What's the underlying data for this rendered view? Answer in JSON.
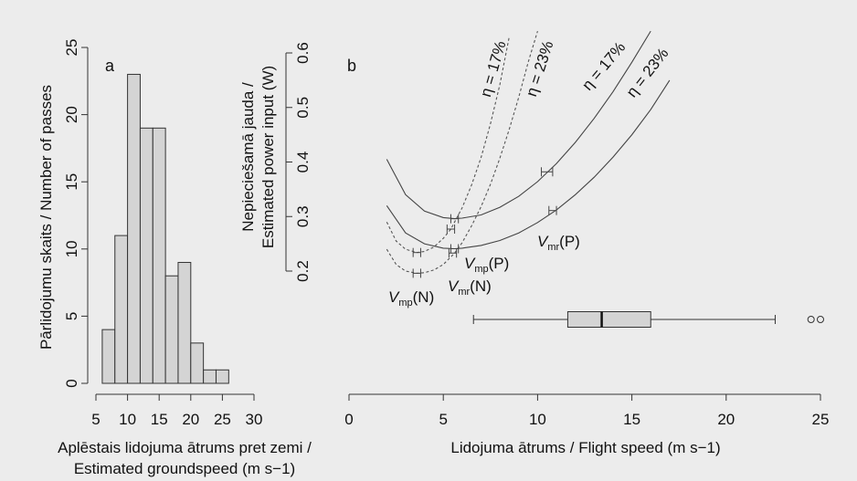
{
  "chart_data": [
    {
      "type": "bar",
      "panel": "a",
      "xlabel_line1": "Aplēstais lidojuma ātrums pret zemi /",
      "xlabel_line2": "Estimated groundspeed (m s−1)",
      "ylabel": "Pārlidojumu skaits / Number of passes",
      "xlim": [
        5,
        30
      ],
      "ylim": [
        0,
        25
      ],
      "x_ticks": [
        "5",
        "10",
        "15",
        "20",
        "25",
        "30"
      ],
      "y_ticks": [
        "0",
        "5",
        "10",
        "15",
        "20",
        "25"
      ],
      "bin_edges": [
        6,
        8,
        10,
        12,
        14,
        16,
        18,
        20,
        22,
        24,
        26
      ],
      "values": [
        4,
        11,
        23,
        19,
        19,
        8,
        9,
        3,
        1,
        1
      ]
    },
    {
      "type": "line",
      "panel": "b",
      "xlabel": "Lidojuma ātrums / Flight speed (m s−1)",
      "ylabel_line1": "Nepieciešamā jauda /",
      "ylabel_line2": "Estimated power input (W)",
      "xlim": [
        0,
        25
      ],
      "ylim": [
        0.2,
        0.6
      ],
      "x_ticks": [
        "0",
        "5",
        "10",
        "15",
        "20",
        "25"
      ],
      "y_ticks": [
        "0.2",
        "0.3",
        "0.4",
        "0.5",
        "0.6"
      ],
      "series": [
        {
          "name": "η = 17%",
          "group": "P",
          "x": [
            2.0,
            3.0,
            4.0,
            5.0,
            5.6,
            6.0,
            7.0,
            8.0,
            9.0,
            10.0,
            11.0,
            12.0,
            13.0,
            14.0,
            15.0,
            16.0
          ],
          "y": [
            0.405,
            0.34,
            0.31,
            0.298,
            0.296,
            0.297,
            0.303,
            0.317,
            0.337,
            0.364,
            0.397,
            0.436,
            0.48,
            0.529,
            0.583,
            0.64
          ]
        },
        {
          "name": "η = 23%",
          "group": "P",
          "x": [
            2.0,
            3.0,
            4.0,
            5.0,
            5.6,
            6.0,
            7.0,
            8.0,
            9.0,
            10.0,
            11.0,
            12.0,
            13.0,
            14.0,
            15.0,
            16.0,
            17.0
          ],
          "y": [
            0.32,
            0.27,
            0.25,
            0.242,
            0.241,
            0.242,
            0.247,
            0.256,
            0.27,
            0.289,
            0.312,
            0.34,
            0.372,
            0.409,
            0.45,
            0.496,
            0.55
          ]
        },
        {
          "name": "η = 17%",
          "group": "N",
          "x": [
            2.0,
            2.5,
            3.0,
            3.6,
            4.0,
            4.5,
            5.0,
            5.4,
            6.0,
            6.5,
            7.0,
            7.5,
            8.0,
            8.5
          ],
          "y": [
            0.29,
            0.255,
            0.24,
            0.234,
            0.236,
            0.244,
            0.26,
            0.277,
            0.316,
            0.358,
            0.408,
            0.47,
            0.542,
            0.63
          ]
        },
        {
          "name": "η = 23%",
          "group": "N",
          "x": [
            2.0,
            2.5,
            3.0,
            3.6,
            4.0,
            4.5,
            5.0,
            5.6,
            6.0,
            6.5,
            7.0,
            7.5,
            8.0,
            8.5,
            9.0,
            9.5,
            10.0
          ],
          "y": [
            0.24,
            0.212,
            0.2,
            0.196,
            0.197,
            0.202,
            0.212,
            0.233,
            0.252,
            0.283,
            0.318,
            0.359,
            0.407,
            0.46,
            0.519,
            0.583,
            0.64
          ]
        }
      ],
      "error_bars": [
        {
          "x": 5.6,
          "y": 0.296,
          "xerr": 0.2
        },
        {
          "x": 5.6,
          "y": 0.241,
          "xerr": 0.2
        },
        {
          "x": 3.6,
          "y": 0.234,
          "xerr": 0.2
        },
        {
          "x": 3.6,
          "y": 0.196,
          "xerr": 0.2
        },
        {
          "x": 5.4,
          "y": 0.277,
          "xerr": 0.2
        },
        {
          "x": 5.5,
          "y": 0.233,
          "xerr": 0.2
        },
        {
          "x": 10.5,
          "y": 0.382,
          "xerr": 0.3
        },
        {
          "x": 10.8,
          "y": 0.311,
          "xerr": 0.2
        }
      ],
      "boxplot": {
        "min": 6.6,
        "q1": 11.6,
        "median": 13.4,
        "q3": 16.0,
        "max": 22.6,
        "outliers": [
          24.5,
          25.0
        ]
      },
      "labels": {
        "vmr_p": "V",
        "vmr_p_sub": "mr",
        "vmr_p_tail": "(P)",
        "vmp_p": "V",
        "vmp_p_sub": "mp",
        "vmp_p_tail": "(P)",
        "vmp_n": "V",
        "vmp_n_sub": "mp",
        "vmp_n_tail": "(N)",
        "vmr_n": "V",
        "vmr_n_sub": "mr",
        "vmr_n_tail": "(N)"
      }
    }
  ]
}
